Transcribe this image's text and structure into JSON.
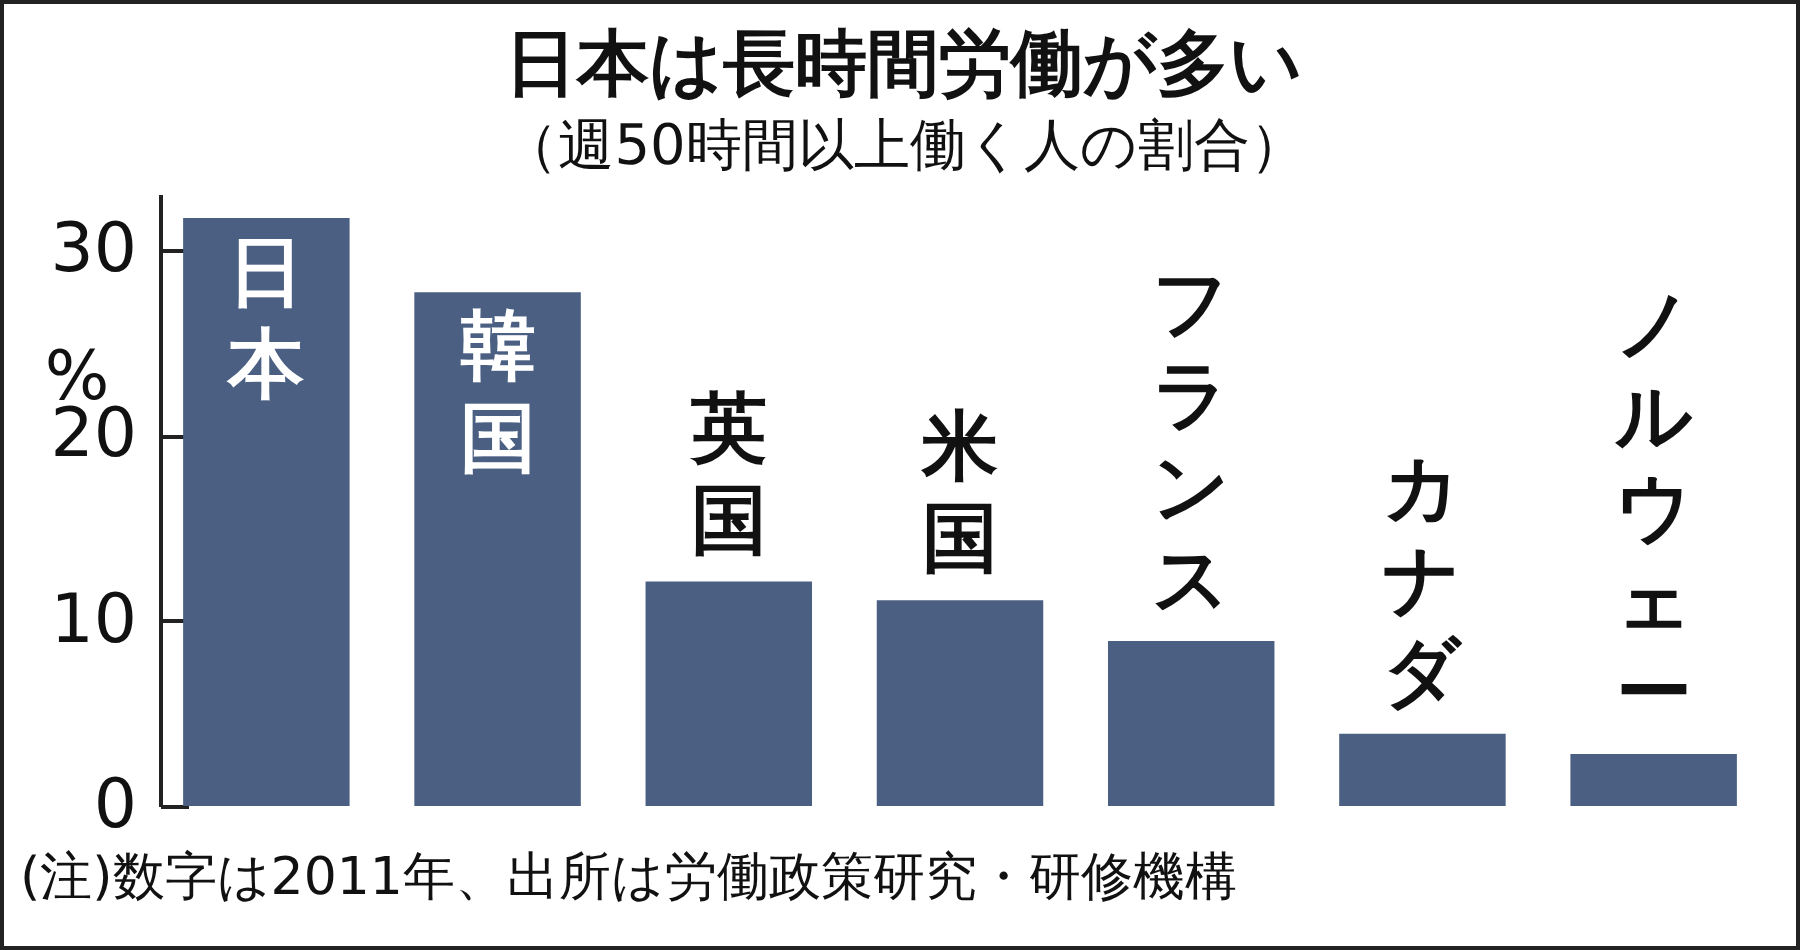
{
  "chart_data": {
    "type": "bar",
    "title": "日本は長時間労働が多い",
    "subtitle": "（週50時間以上働く人の割合）",
    "ylabel": "%",
    "categories": [
      "日本",
      "韓国",
      "英国",
      "米国",
      "フランス",
      "カナダ",
      "ノルウェー"
    ],
    "values": [
      31.7,
      27.7,
      12.1,
      11.1,
      8.9,
      3.9,
      2.8
    ],
    "color": "#4a5f82",
    "ylim": [
      0,
      33
    ],
    "yticks": [
      0,
      10,
      20,
      30
    ],
    "grid": false,
    "tick_labels": "y",
    "annotations": [
      "(注)数字は2011年、出所は労働政策研究・研修機構"
    ]
  }
}
